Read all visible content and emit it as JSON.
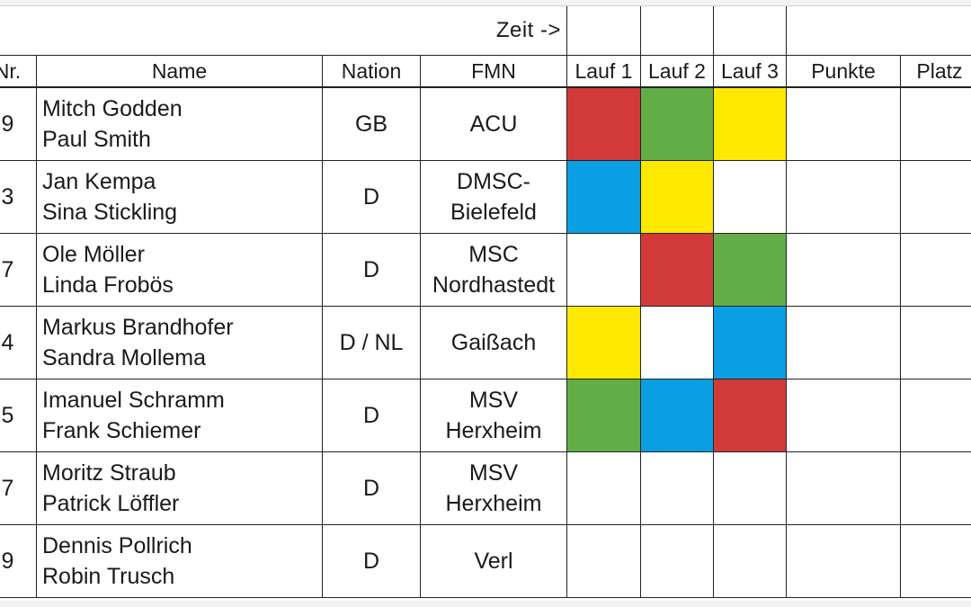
{
  "header": {
    "time_label": "Zeit ->",
    "columns": {
      "nr": "Nr.",
      "name": "Name",
      "nation": "Nation",
      "fmn": "FMN",
      "lauf1": "Lauf 1",
      "lauf2": "Lauf 2",
      "lauf3": "Lauf 3",
      "punkte": "Punkte",
      "platz": "Platz"
    }
  },
  "colors": {
    "red": "#d23a3a",
    "green": "#63ad47",
    "yellow": "#fde800",
    "blue": "#0a9fe2",
    "none": "#ffffff"
  },
  "rows": [
    {
      "nr": "9",
      "driver": "Mitch Godden",
      "passenger": "Paul Smith",
      "nation": "GB",
      "fmn_line1": "ACU",
      "fmn_line2": "",
      "lauf": [
        "red",
        "green",
        "yellow"
      ]
    },
    {
      "nr": "3",
      "driver": "Jan Kempa",
      "passenger": "Sina Stickling",
      "nation": "D",
      "fmn_line1": "DMSC-",
      "fmn_line2": "Bielefeld",
      "lauf": [
        "blue",
        "yellow",
        "none"
      ]
    },
    {
      "nr": "7",
      "driver": "Ole Möller",
      "passenger": "Linda Frobös",
      "nation": "D",
      "fmn_line1": "MSC",
      "fmn_line2": "Nordhastedt",
      "lauf": [
        "none",
        "red",
        "green"
      ]
    },
    {
      "nr": "4",
      "driver": "Markus Brandhofer",
      "passenger": "Sandra Mollema",
      "nation": "D / NL",
      "fmn_line1": "Gaißach",
      "fmn_line2": "",
      "lauf": [
        "yellow",
        "none",
        "blue"
      ]
    },
    {
      "nr": "5",
      "driver": "Imanuel Schramm",
      "passenger": "Frank Schiemer",
      "nation": "D",
      "fmn_line1": "MSV",
      "fmn_line2": "Herxheim",
      "lauf": [
        "green",
        "blue",
        "red"
      ]
    },
    {
      "nr": "7",
      "driver": "Moritz Straub",
      "passenger": "Patrick Löffler",
      "nation": "D",
      "fmn_line1": "MSV",
      "fmn_line2": "Herxheim",
      "lauf": [
        "none",
        "none",
        "none"
      ]
    },
    {
      "nr": "9",
      "driver": "Dennis Pollrich",
      "passenger": "Robin Trusch",
      "nation": "D",
      "fmn_line1": "Verl",
      "fmn_line2": "",
      "lauf": [
        "none",
        "none",
        "none"
      ]
    }
  ]
}
